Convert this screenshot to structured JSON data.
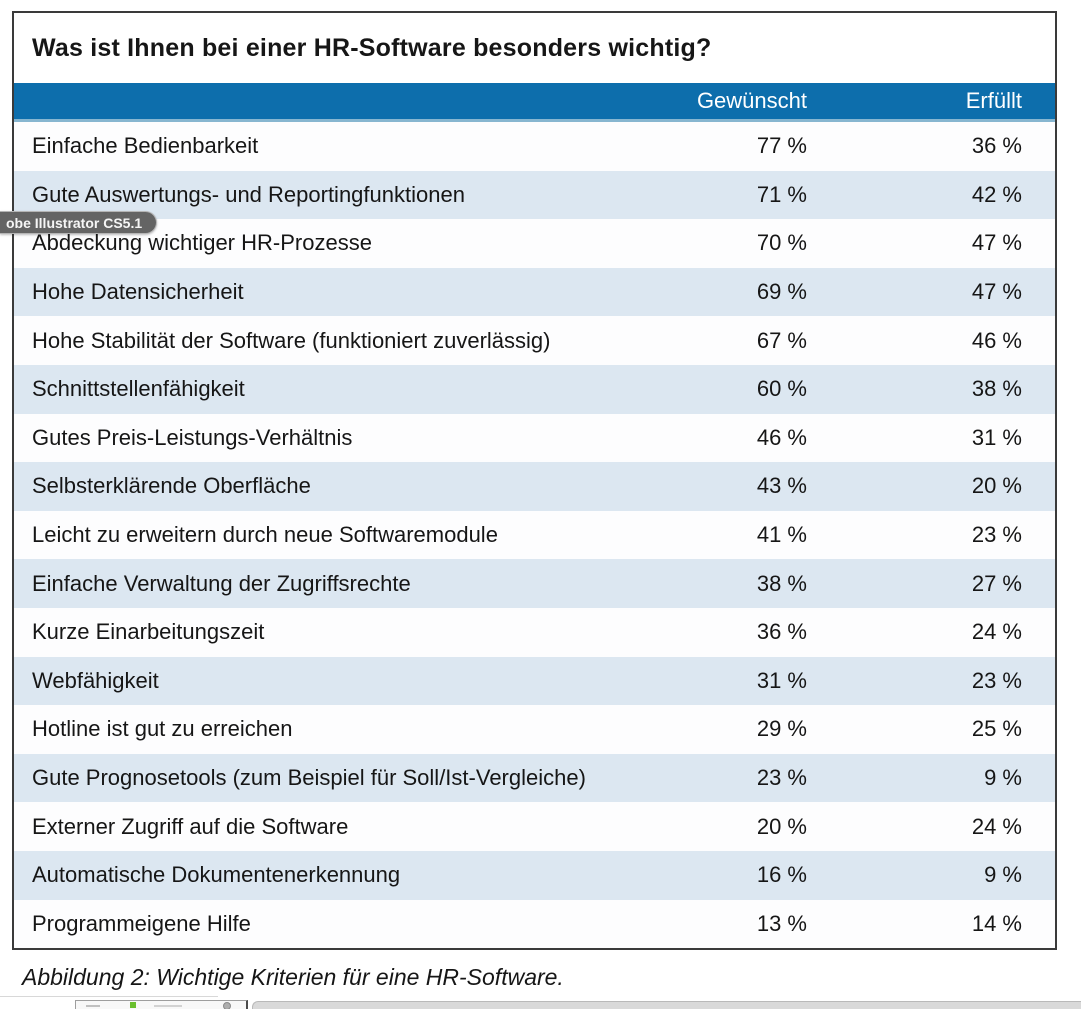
{
  "figure": {
    "title": "Was ist Ihnen bei einer HR-Software besonders wichtig?",
    "caption": "Abbildung 2: Wichtige Kriterien für eine HR-Software."
  },
  "tooltip": {
    "text": "obe Illustrator CS5.1"
  },
  "table": {
    "columns": [
      "Gewünscht",
      "Erfüllt"
    ],
    "rows": [
      {
        "label": "Einfache Bedienbarkeit",
        "gewuenscht": "77 %",
        "erfuellt": "36 %"
      },
      {
        "label": "Gute Auswertungs- und Reportingfunktionen",
        "gewuenscht": "71 %",
        "erfuellt": "42 %"
      },
      {
        "label": "Abdeckung wichtiger HR-Prozesse",
        "gewuenscht": "70 %",
        "erfuellt": "47 %"
      },
      {
        "label": "Hohe Datensicherheit",
        "gewuenscht": "69 %",
        "erfuellt": "47 %"
      },
      {
        "label": "Hohe Stabilität der Software (funktioniert zuverlässig)",
        "gewuenscht": "67 %",
        "erfuellt": "46 %"
      },
      {
        "label": "Schnittstellenfähigkeit",
        "gewuenscht": "60 %",
        "erfuellt": "38 %"
      },
      {
        "label": "Gutes Preis-Leistungs-Verhältnis",
        "gewuenscht": "46 %",
        "erfuellt": "31 %"
      },
      {
        "label": "Selbsterklärende Oberfläche",
        "gewuenscht": "43 %",
        "erfuellt": "20 %"
      },
      {
        "label": "Leicht zu erweitern durch neue Softwaremodule",
        "gewuenscht": "41 %",
        "erfuellt": "23 %"
      },
      {
        "label": "Einfache Verwaltung der Zugriffsrechte",
        "gewuenscht": "38 %",
        "erfuellt": "27 %"
      },
      {
        "label": "Kurze Einarbeitungszeit",
        "gewuenscht": "36 %",
        "erfuellt": "24 %"
      },
      {
        "label": "Webfähigkeit",
        "gewuenscht": "31 %",
        "erfuellt": "23 %"
      },
      {
        "label": "Hotline ist gut zu erreichen",
        "gewuenscht": "29 %",
        "erfuellt": "25 %"
      },
      {
        "label": "Gute Prognosetools (zum Beispiel für Soll/Ist-Vergleiche)",
        "gewuenscht": "23 %",
        "erfuellt": "9 %"
      },
      {
        "label": "Externer Zugriff auf die Software",
        "gewuenscht": "20 %",
        "erfuellt": "24 %"
      },
      {
        "label": "Automatische Dokumentenerkennung",
        "gewuenscht": "16 %",
        "erfuellt": "9 %"
      },
      {
        "label": "Programmeigene Hilfe",
        "gewuenscht": "13 %",
        "erfuellt": "14 %"
      }
    ]
  },
  "chart_data": {
    "type": "table",
    "title": "Was ist Ihnen bei einer HR-Software besonders wichtig?",
    "caption": "Abbildung 2: Wichtige Kriterien für eine HR-Software.",
    "unit": "%",
    "categories": [
      "Einfache Bedienbarkeit",
      "Gute Auswertungs- und Reportingfunktionen",
      "Abdeckung wichtiger HR-Prozesse",
      "Hohe Datensicherheit",
      "Hohe Stabilität der Software (funktioniert zuverlässig)",
      "Schnittstellenfähigkeit",
      "Gutes Preis-Leistungs-Verhältnis",
      "Selbsterklärende Oberfläche",
      "Leicht zu erweitern durch neue Softwaremodule",
      "Einfache Verwaltung der Zugriffsrechte",
      "Kurze Einarbeitungszeit",
      "Webfähigkeit",
      "Hotline ist gut zu erreichen",
      "Gute Prognosetools (zum Beispiel für Soll/Ist-Vergleiche)",
      "Externer Zugriff auf die Software",
      "Automatische Dokumentenerkennung",
      "Programmeigene Hilfe"
    ],
    "series": [
      {
        "name": "Gewünscht",
        "values": [
          77,
          71,
          70,
          69,
          67,
          60,
          46,
          43,
          41,
          38,
          36,
          31,
          29,
          23,
          20,
          16,
          13
        ]
      },
      {
        "name": "Erfüllt",
        "values": [
          36,
          42,
          47,
          47,
          46,
          38,
          31,
          20,
          23,
          27,
          24,
          23,
          25,
          9,
          24,
          9,
          14
        ]
      }
    ]
  },
  "colors": {
    "header-blue": "#0d6eac",
    "header-underline": "#87b6d0",
    "row-alt": "#dce7f1",
    "row-white": "#fdfdfe",
    "border-dark": "#3a3a3a",
    "text": "#161616"
  }
}
